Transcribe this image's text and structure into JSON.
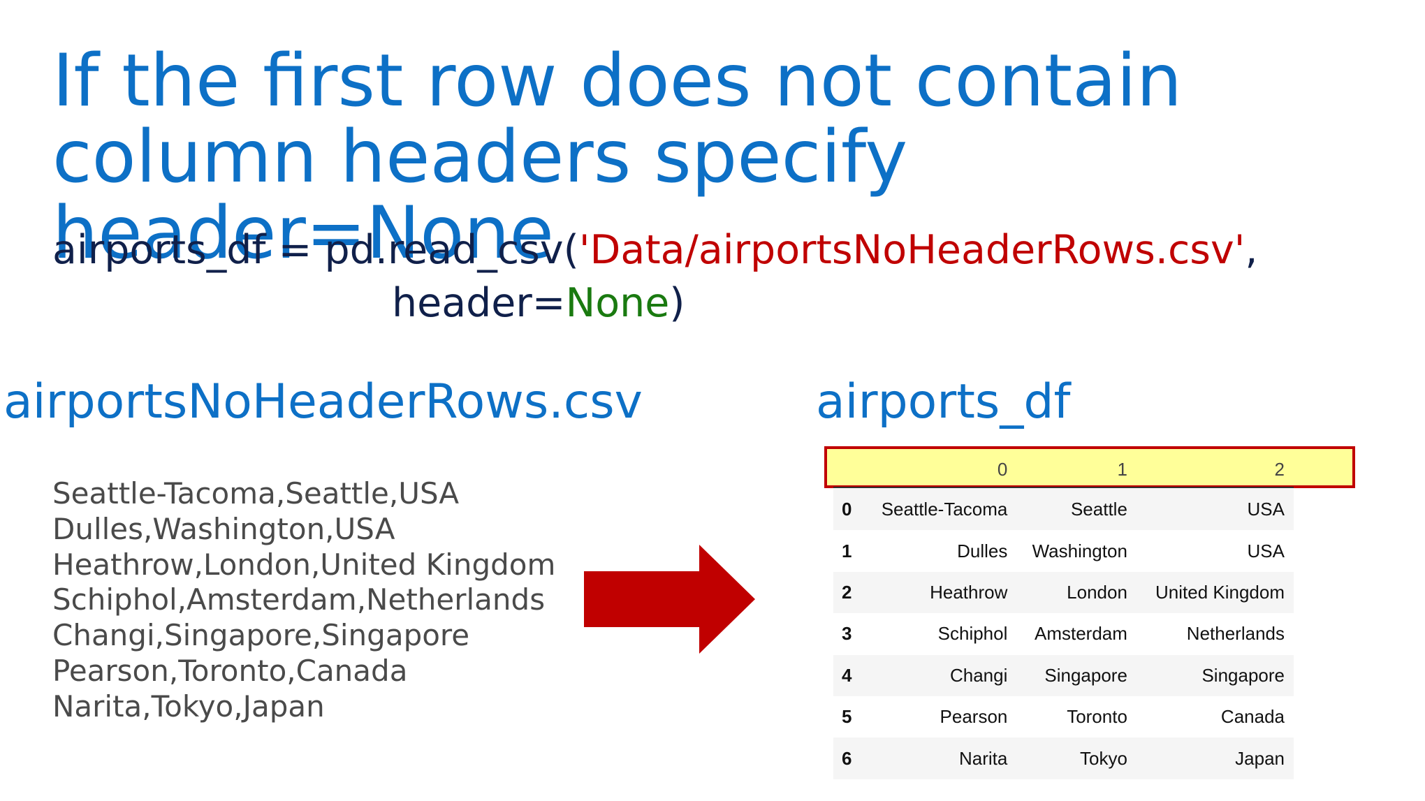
{
  "title": "If the first row does not contain\ncolumn headers specify header=None",
  "code": {
    "line1_prefix": "airports_df = pd.read_csv(",
    "line1_string": "'Data/airportsNoHeaderRows.csv'",
    "line1_suffix": ",",
    "line2_prefix": "header=",
    "line2_keyword": "None",
    "line2_suffix": ")",
    "string_color": "#c00000",
    "keyword_color": "#1a7a10"
  },
  "csv_heading": "airportsNoHeaderRows.csv",
  "df_heading": "airports_df",
  "csv_lines": [
    "Seattle-Tacoma,Seattle,USA",
    "Dulles,Washington,USA",
    "Heathrow,London,United Kingdom",
    "Schiphol,Amsterdam,Netherlands",
    "Changi,Singapore,Singapore",
    "Pearson,Toronto,Canada",
    "Narita,Tokyo,Japan"
  ],
  "arrow": {
    "icon": "right-arrow-icon",
    "color": "#c00000"
  },
  "dataframe": {
    "columns": [
      "0",
      "1",
      "2"
    ],
    "rows": [
      {
        "index": "0",
        "values": [
          "Seattle-Tacoma",
          "Seattle",
          "USA"
        ]
      },
      {
        "index": "1",
        "values": [
          "Dulles",
          "Washington",
          "USA"
        ]
      },
      {
        "index": "2",
        "values": [
          "Heathrow",
          "London",
          "United Kingdom"
        ]
      },
      {
        "index": "3",
        "values": [
          "Schiphol",
          "Amsterdam",
          "Netherlands"
        ]
      },
      {
        "index": "4",
        "values": [
          "Changi",
          "Singapore",
          "Singapore"
        ]
      },
      {
        "index": "5",
        "values": [
          "Pearson",
          "Toronto",
          "Canada"
        ]
      },
      {
        "index": "6",
        "values": [
          "Narita",
          "Tokyo",
          "Japan"
        ]
      }
    ],
    "header_highlight_color": "#ffff99",
    "header_border_color": "#c00000"
  }
}
